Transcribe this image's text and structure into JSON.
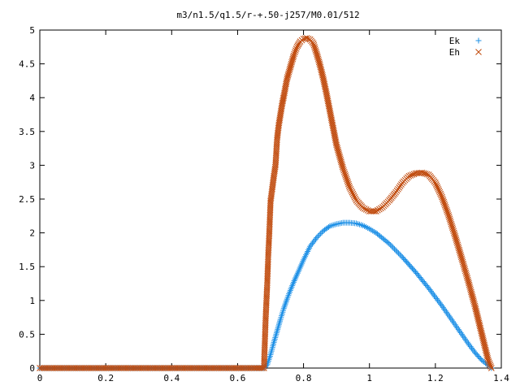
{
  "chart_data": {
    "type": "scatter",
    "title": "m3/n1.5/q1.5/r-+.50-j257/M0.01/512",
    "xlabel": "",
    "ylabel": "",
    "xlim": [
      0,
      1.4
    ],
    "ylim": [
      0,
      5
    ],
    "grid": false,
    "legend_position": "top-right",
    "xticks": [
      "0",
      "0.2",
      "0.4",
      "0.6",
      "0.8",
      "1",
      "1.2",
      "1.4"
    ],
    "yticks": [
      "0",
      "0.5",
      "1",
      "1.5",
      "2",
      "2.5",
      "3",
      "3.5",
      "4",
      "4.5",
      "5"
    ],
    "series": [
      {
        "name": "Ek",
        "marker": "+",
        "color": "#1e90e6",
        "x": [
          0.0,
          0.05,
          0.1,
          0.15,
          0.2,
          0.25,
          0.3,
          0.35,
          0.4,
          0.45,
          0.5,
          0.55,
          0.6,
          0.65,
          0.68,
          0.69,
          0.7,
          0.71,
          0.72,
          0.73,
          0.74,
          0.75,
          0.76,
          0.77,
          0.78,
          0.8,
          0.82,
          0.84,
          0.86,
          0.88,
          0.9,
          0.92,
          0.94,
          0.96,
          0.98,
          1.0,
          1.02,
          1.04,
          1.06,
          1.08,
          1.1,
          1.12,
          1.14,
          1.16,
          1.18,
          1.2,
          1.22,
          1.24,
          1.26,
          1.28,
          1.3,
          1.32,
          1.34,
          1.36,
          1.37
        ],
        "y": [
          0,
          0,
          0,
          0,
          0,
          0,
          0,
          0,
          0,
          0,
          0,
          0,
          0,
          0,
          0,
          0.05,
          0.2,
          0.38,
          0.55,
          0.72,
          0.88,
          1.02,
          1.15,
          1.27,
          1.38,
          1.6,
          1.8,
          1.93,
          2.03,
          2.1,
          2.13,
          2.15,
          2.15,
          2.14,
          2.11,
          2.06,
          2.0,
          1.92,
          1.84,
          1.74,
          1.64,
          1.53,
          1.42,
          1.3,
          1.18,
          1.05,
          0.92,
          0.78,
          0.64,
          0.5,
          0.36,
          0.23,
          0.12,
          0.04,
          0.0
        ]
      },
      {
        "name": "Eh",
        "marker": "x",
        "color": "#c04a0c",
        "x": [
          0.0,
          0.05,
          0.1,
          0.15,
          0.2,
          0.25,
          0.3,
          0.35,
          0.4,
          0.45,
          0.5,
          0.55,
          0.6,
          0.65,
          0.68,
          0.685,
          0.69,
          0.693,
          0.696,
          0.7,
          0.705,
          0.71,
          0.715,
          0.72,
          0.725,
          0.73,
          0.735,
          0.74,
          0.745,
          0.75,
          0.76,
          0.77,
          0.78,
          0.79,
          0.8,
          0.81,
          0.82,
          0.83,
          0.84,
          0.85,
          0.86,
          0.87,
          0.88,
          0.89,
          0.9,
          0.92,
          0.94,
          0.96,
          0.98,
          1.0,
          1.02,
          1.04,
          1.06,
          1.08,
          1.1,
          1.12,
          1.14,
          1.16,
          1.18,
          1.2,
          1.22,
          1.24,
          1.26,
          1.28,
          1.3,
          1.32,
          1.34,
          1.36,
          1.37
        ],
        "y": [
          0,
          0,
          0,
          0,
          0,
          0,
          0,
          0,
          0,
          0,
          0,
          0,
          0,
          0,
          0,
          0.72,
          1.26,
          1.67,
          1.98,
          2.47,
          2.65,
          2.84,
          3.0,
          3.4,
          3.6,
          3.75,
          3.9,
          4.02,
          4.15,
          4.28,
          4.45,
          4.62,
          4.75,
          4.83,
          4.87,
          4.88,
          4.86,
          4.8,
          4.65,
          4.48,
          4.28,
          4.05,
          3.8,
          3.55,
          3.3,
          2.95,
          2.67,
          2.48,
          2.37,
          2.32,
          2.32,
          2.38,
          2.48,
          2.6,
          2.74,
          2.84,
          2.88,
          2.89,
          2.86,
          2.74,
          2.53,
          2.26,
          1.95,
          1.62,
          1.28,
          0.92,
          0.52,
          0.12,
          0.0
        ]
      }
    ]
  }
}
